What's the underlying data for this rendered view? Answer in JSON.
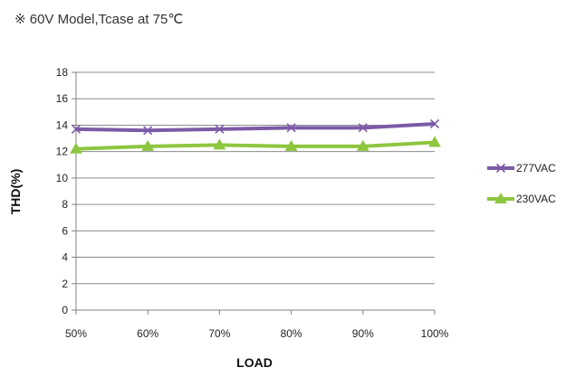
{
  "note": "※ 60V Model,Tcase at 75℃",
  "chart_data": {
    "type": "line",
    "title": "",
    "xlabel": "LOAD",
    "ylabel": "THD(%)",
    "categories": [
      "50%",
      "60%",
      "70%",
      "80%",
      "90%",
      "100%"
    ],
    "ylim": [
      0,
      18
    ],
    "yticks": [
      0,
      2,
      4,
      6,
      8,
      10,
      12,
      14,
      16,
      18
    ],
    "grid": true,
    "legend_position": "right",
    "series": [
      {
        "name": "277VAC",
        "values": [
          13.7,
          13.6,
          13.7,
          13.8,
          13.8,
          14.1
        ],
        "color": "#7b5aa6",
        "marker": "x"
      },
      {
        "name": "230VAC",
        "values": [
          12.2,
          12.4,
          12.5,
          12.4,
          12.4,
          12.7
        ],
        "color": "#8dc63f",
        "marker": "triangle"
      }
    ]
  }
}
